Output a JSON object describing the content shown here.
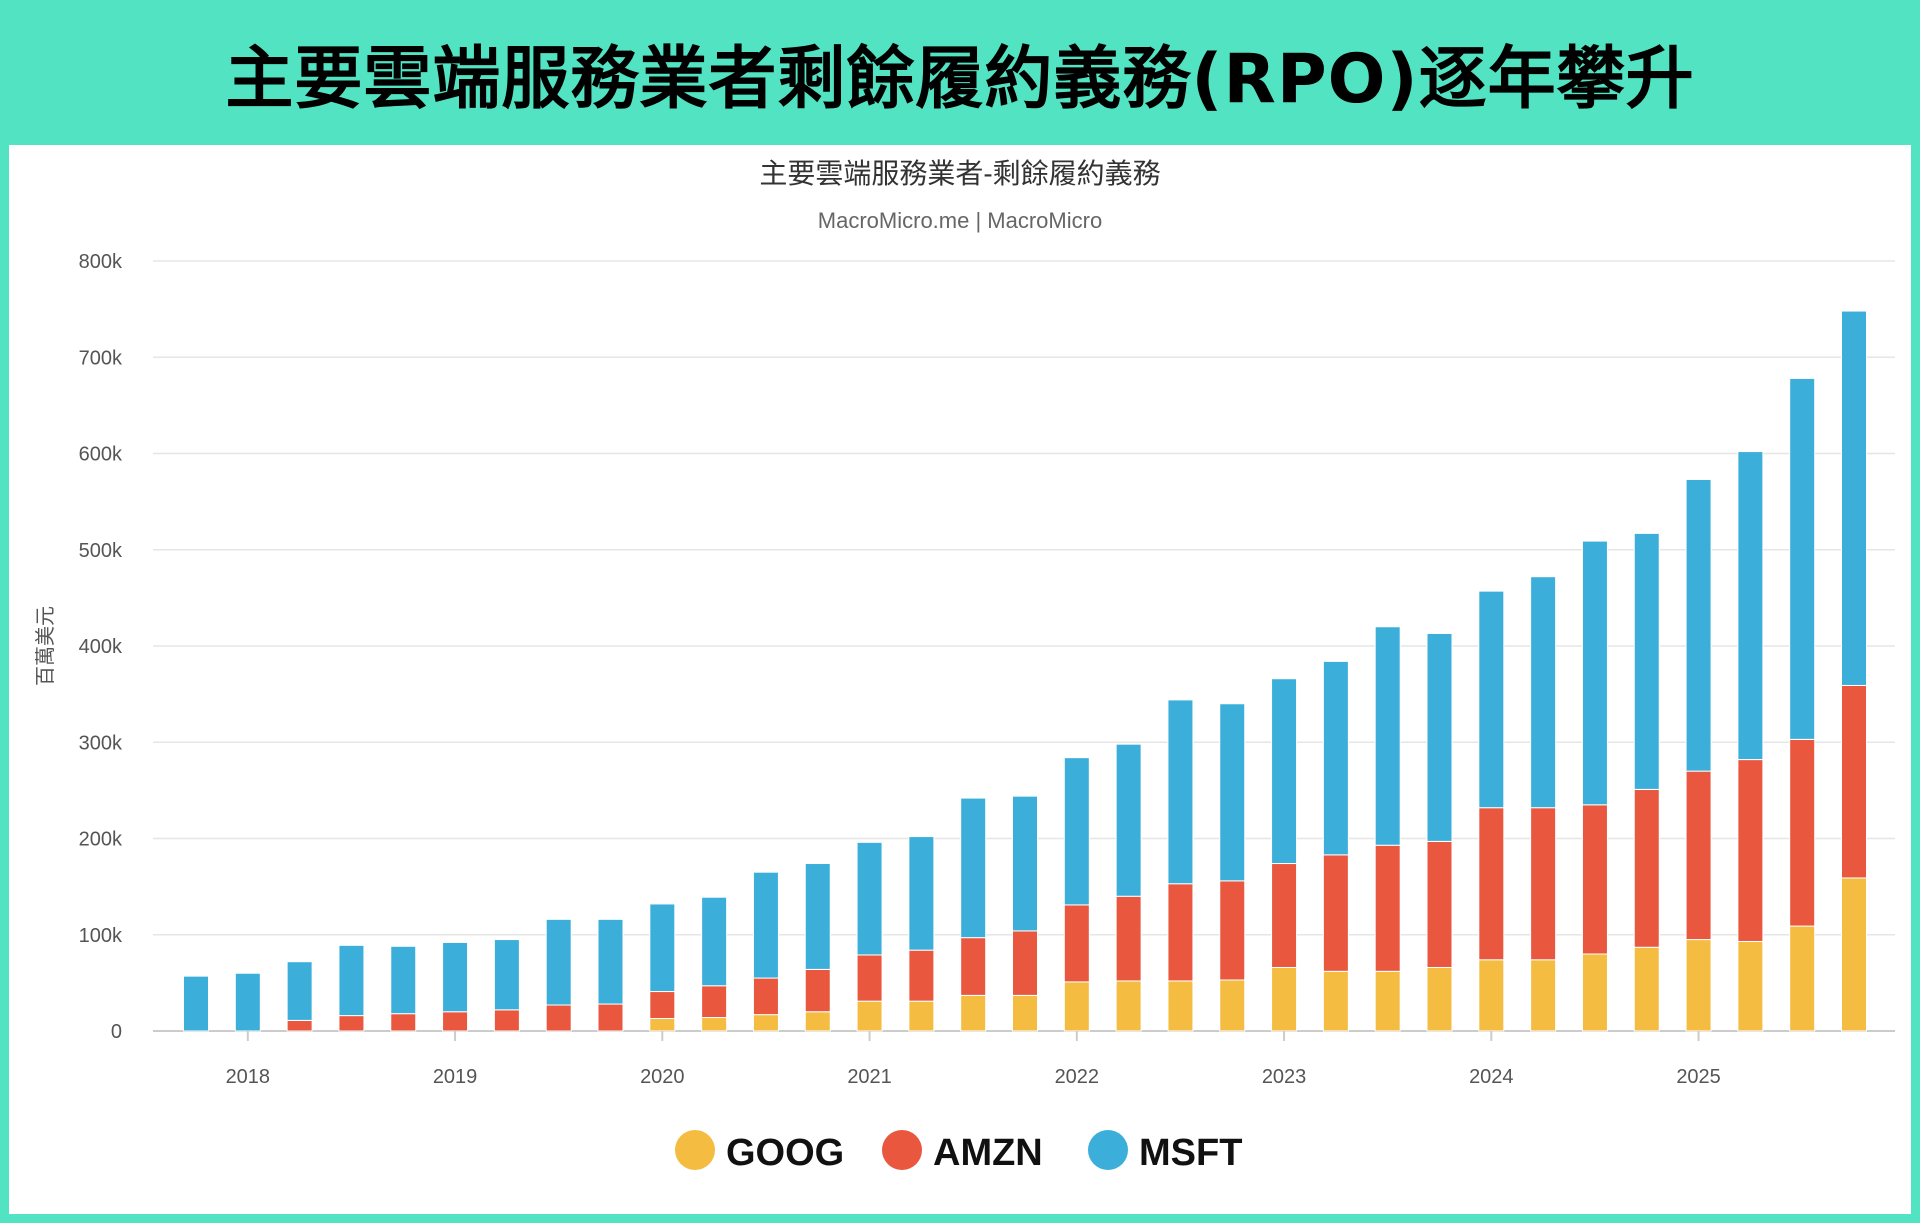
{
  "header": {
    "title": "主要雲端服務業者剩餘履約義務(RPO)逐年攀升"
  },
  "chart_data": {
    "type": "bar",
    "stacked": true,
    "title": "主要雲端服務業者-剩餘履約義務",
    "subtitle": "MacroMicro.me | MacroMicro",
    "ylabel": "百萬美元",
    "xlabel": "",
    "ylim": [
      0,
      800000
    ],
    "yticks": [
      0,
      100000,
      200000,
      300000,
      400000,
      500000,
      600000,
      700000,
      800000
    ],
    "ytick_labels": [
      "0",
      "100k",
      "200k",
      "300k",
      "400k",
      "500k",
      "600k",
      "700k",
      "800k"
    ],
    "xtick_labels": [
      "2018",
      "2019",
      "2020",
      "2021",
      "2022",
      "2023",
      "2024",
      "2025"
    ],
    "xtick_categories": [
      "2018Q1",
      "2019Q1",
      "2020Q1",
      "2021Q1",
      "2022Q1",
      "2023Q1",
      "2024Q1",
      "2025Q1"
    ],
    "grid": true,
    "legend_position": "bottom",
    "categories": [
      "2017Q4",
      "2018Q1",
      "2018Q2",
      "2018Q3",
      "2018Q4",
      "2019Q1",
      "2019Q2",
      "2019Q3",
      "2019Q4",
      "2020Q1",
      "2020Q2",
      "2020Q3",
      "2020Q4",
      "2021Q1",
      "2021Q2",
      "2021Q3",
      "2021Q4",
      "2022Q1",
      "2022Q2",
      "2022Q3",
      "2022Q4",
      "2023Q1",
      "2023Q2",
      "2023Q3",
      "2023Q4",
      "2024Q1",
      "2024Q2",
      "2024Q3",
      "2024Q4",
      "2025Q1",
      "2025Q2",
      "2025Q3",
      "2025Q4"
    ],
    "series": [
      {
        "name": "GOOG",
        "color": "#f5bc42",
        "values": [
          0,
          0,
          0,
          0,
          0,
          0,
          0,
          0,
          0,
          13000,
          14000,
          17000,
          20000,
          31000,
          31000,
          37000,
          37000,
          51000,
          52000,
          52000,
          53000,
          66000,
          62000,
          62000,
          66000,
          74000,
          74000,
          80000,
          87000,
          95000,
          93000,
          109000,
          159000
        ]
      },
      {
        "name": "AMZN",
        "color": "#e9573f",
        "values": [
          0,
          0,
          11000,
          16000,
          18000,
          20000,
          22000,
          27000,
          28000,
          28000,
          33000,
          38000,
          44000,
          48000,
          53000,
          60000,
          67000,
          80000,
          88000,
          101000,
          103000,
          108000,
          121000,
          131000,
          131000,
          158000,
          158000,
          155000,
          164000,
          175000,
          189000,
          194000,
          200000
        ]
      },
      {
        "name": "MSFT",
        "color": "#3bafda",
        "values": [
          57000,
          60000,
          61000,
          73000,
          70000,
          72000,
          73000,
          89000,
          88000,
          91000,
          92000,
          110000,
          110000,
          117000,
          118000,
          145000,
          140000,
          153000,
          158000,
          191000,
          184000,
          192000,
          201000,
          227000,
          216000,
          225000,
          240000,
          274000,
          266000,
          303000,
          320000,
          375000,
          389000
        ]
      }
    ]
  }
}
